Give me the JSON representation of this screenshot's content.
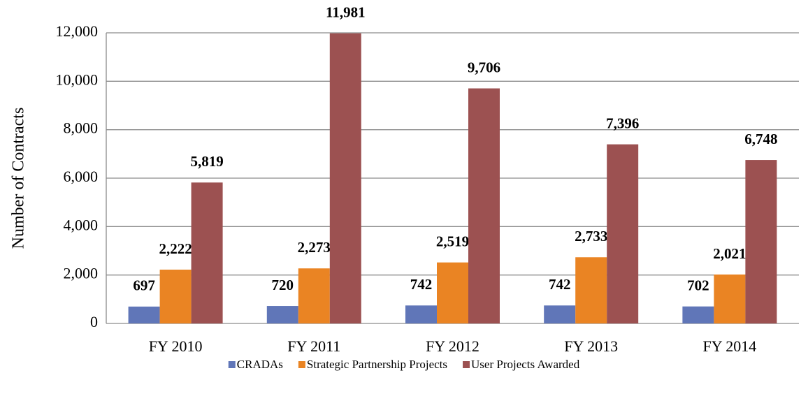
{
  "chart_data": {
    "type": "bar",
    "y_label": "Number of Contracts",
    "categories": [
      "FY 2010",
      "FY 2011",
      "FY 2012",
      "FY 2013",
      "FY 2014"
    ],
    "series": [
      {
        "name": "CRADAs",
        "color": "#6076b8",
        "values": [
          697,
          720,
          742,
          742,
          702
        ]
      },
      {
        "name": "Strategic Partnership Projects",
        "color": "#ea8423",
        "values": [
          2222,
          2273,
          2519,
          2733,
          2021
        ],
        "value_labels": [
          "2,222",
          "2,273",
          "2,519",
          "2,733",
          "2,021"
        ]
      },
      {
        "name": "User Projects Awarded",
        "color": "#9c5151",
        "values": [
          5819,
          11981,
          9706,
          7396,
          6748
        ],
        "value_labels": [
          "5,819",
          "11,981",
          "9,706",
          "7,396",
          "6,748"
        ]
      }
    ],
    "ylim": [
      0,
      12000
    ],
    "yticks": [
      0,
      {
        "value": 2000,
        "label": "2,000"
      },
      {
        "value": 4000,
        "label": "4,000"
      },
      {
        "value": 6000,
        "label": "6,000"
      },
      {
        "value": 8000,
        "label": "8,000"
      },
      {
        "value": 10000,
        "label": "10,000"
      },
      {
        "value": 12000,
        "label": "12,000"
      }
    ],
    "grid": true,
    "legend": "bottom"
  }
}
